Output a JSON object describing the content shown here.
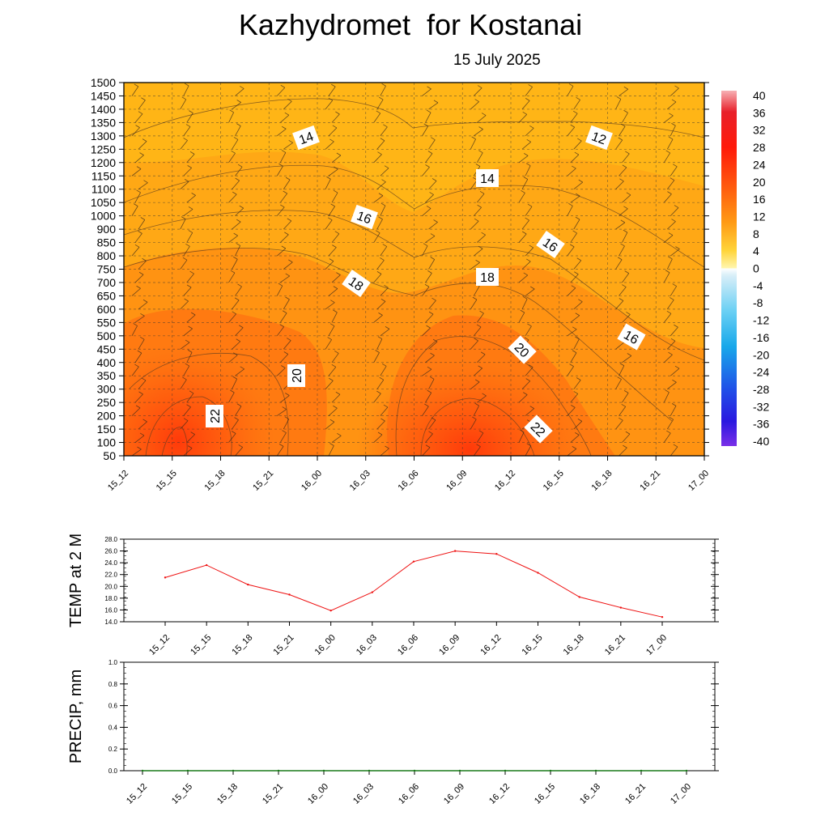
{
  "title": "Kazhydromet  for Kostanai",
  "subtitle": "15 July 2025",
  "chart_data": [
    {
      "type": "heatmap",
      "x_categories": [
        "15_12",
        "15_15",
        "15_18",
        "15_21",
        "16_00",
        "16_03",
        "16_06",
        "16_09",
        "16_12",
        "16_15",
        "16_18",
        "16_21",
        "17_00"
      ],
      "y_ticks": [
        50,
        100,
        150,
        200,
        250,
        300,
        350,
        400,
        450,
        500,
        550,
        600,
        650,
        700,
        750,
        800,
        850,
        900,
        1000,
        1050,
        1100,
        1150,
        1200,
        1250,
        1300,
        1350,
        1400,
        1450,
        1500
      ],
      "contour_labels": [
        "14",
        "12",
        "14",
        "16",
        "16",
        "18",
        "18",
        "16",
        "20",
        "20",
        "22",
        "22"
      ],
      "colorbar_ticks": [
        "40",
        "36",
        "32",
        "28",
        "24",
        "20",
        "16",
        "12",
        "8",
        "4",
        "0",
        "-4",
        "-8",
        "-12",
        "-16",
        "-20",
        "-24",
        "-28",
        "-32",
        "-36",
        "-40"
      ],
      "colorbar_range": [
        -40,
        40
      ],
      "grid": true,
      "colors": {
        "warm_low": "#ff3a0a",
        "warm_mid": "#ff9a14",
        "warm_high": "#ffb415",
        "zero": "#ffffff",
        "cold_low": "#5a18e0"
      }
    },
    {
      "type": "line",
      "ylabel": "TEMP at 2 M",
      "categories": [
        "15_12",
        "15_15",
        "15_18",
        "15_21",
        "16_00",
        "16_03",
        "16_06",
        "16_09",
        "16_12",
        "16_15",
        "16_18",
        "16_21",
        "17_00"
      ],
      "values": [
        21.5,
        23.6,
        20.3,
        18.6,
        15.9,
        19.0,
        24.2,
        26.0,
        25.5,
        22.3,
        18.2,
        16.4,
        14.8
      ],
      "ylim": [
        14.0,
        28.0
      ],
      "y_ticks": [
        "14.0",
        "16.0",
        "18.0",
        "20.0",
        "22.0",
        "24.0",
        "26.0",
        "28.0"
      ],
      "color": "#ee1111",
      "grid": true
    },
    {
      "type": "line",
      "ylabel": "PRECIP, mm",
      "categories": [
        "15_12",
        "15_15",
        "15_18",
        "15_21",
        "16_00",
        "16_03",
        "16_06",
        "16_09",
        "16_12",
        "16_15",
        "16_18",
        "16_21",
        "17_00"
      ],
      "values": [
        0,
        0,
        0,
        0,
        0,
        0,
        0,
        0,
        0,
        0,
        0,
        0,
        0
      ],
      "ylim": [
        0.0,
        1.0
      ],
      "y_ticks": [
        "0.0",
        "0.2",
        "0.4",
        "0.6",
        "0.8",
        "1.0"
      ],
      "color": "#1a7a1a",
      "grid": true
    }
  ]
}
